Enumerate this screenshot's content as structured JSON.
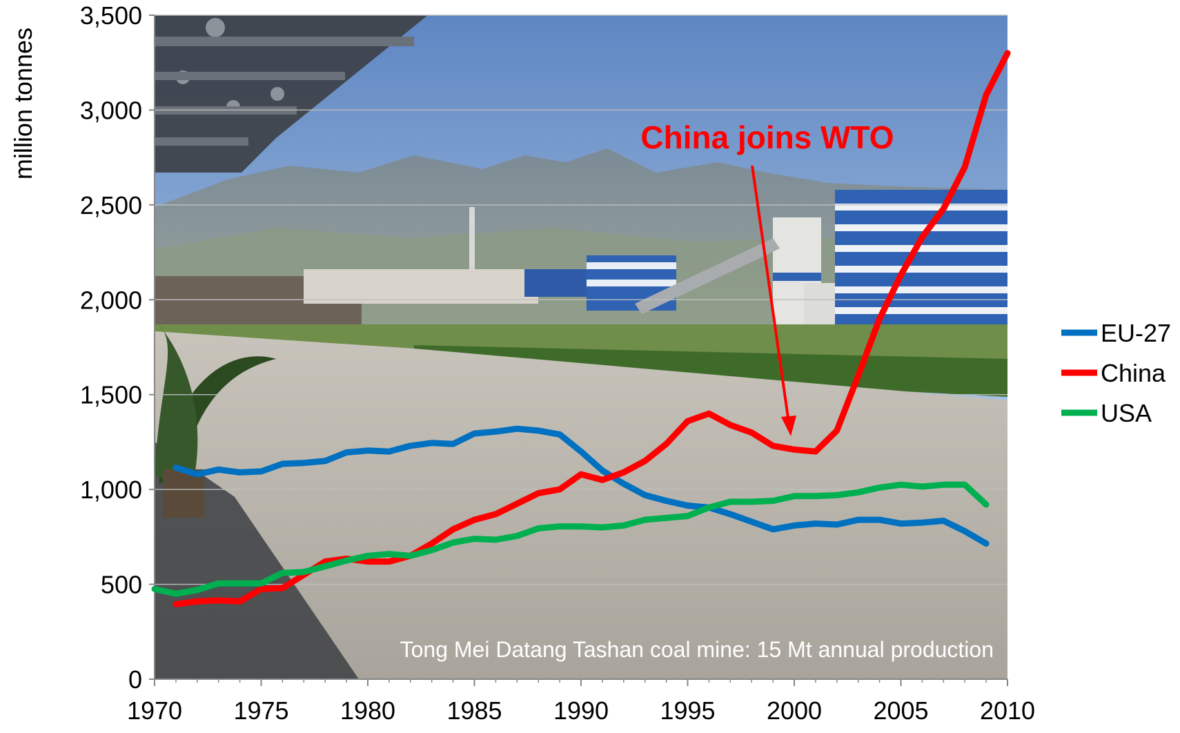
{
  "chart_data": {
    "type": "line",
    "ylabel": "million tonnes",
    "xlim": [
      1970,
      2010
    ],
    "ylim": [
      0,
      3500
    ],
    "x_ticks": [
      "1970",
      "1975",
      "1980",
      "1985",
      "1990",
      "1995",
      "2000",
      "2005",
      "2010"
    ],
    "y_ticks": [
      "0",
      "500",
      "1,000",
      "1,500",
      "2,000",
      "2,500",
      "3,000",
      "3,500"
    ],
    "grid": true,
    "legend_position": "right",
    "series": [
      {
        "name": "EU-27",
        "color": "#0070c0",
        "x": [
          1971,
          1972,
          1973,
          1974,
          1975,
          1976,
          1977,
          1978,
          1979,
          1980,
          1981,
          1982,
          1983,
          1984,
          1985,
          1986,
          1987,
          1988,
          1989,
          1990,
          1991,
          1992,
          1993,
          1994,
          1995,
          1996,
          1997,
          1998,
          1999,
          2000,
          2001,
          2002,
          2003,
          2004,
          2005,
          2006,
          2007,
          2008,
          2009
        ],
        "y": [
          1115,
          1080,
          1105,
          1090,
          1095,
          1135,
          1140,
          1150,
          1195,
          1205,
          1200,
          1230,
          1245,
          1240,
          1295,
          1305,
          1320,
          1310,
          1290,
          1200,
          1100,
          1030,
          970,
          940,
          915,
          905,
          870,
          830,
          790,
          810,
          820,
          815,
          840,
          840,
          820,
          825,
          835,
          780,
          715
        ]
      },
      {
        "name": "China",
        "color": "#ff0000",
        "x": [
          1971,
          1972,
          1973,
          1974,
          1975,
          1976,
          1977,
          1978,
          1979,
          1980,
          1981,
          1982,
          1983,
          1984,
          1985,
          1986,
          1987,
          1988,
          1989,
          1990,
          1991,
          1992,
          1993,
          1994,
          1995,
          1996,
          1997,
          1998,
          1999,
          2000,
          2001,
          2002,
          2003,
          2004,
          2005,
          2006,
          2007,
          2008,
          2009,
          2010
        ],
        "y": [
          395,
          410,
          415,
          410,
          475,
          480,
          550,
          620,
          635,
          620,
          620,
          650,
          715,
          790,
          840,
          870,
          925,
          980,
          1000,
          1080,
          1050,
          1090,
          1150,
          1240,
          1360,
          1400,
          1340,
          1300,
          1230,
          1210,
          1200,
          1310,
          1600,
          1900,
          2130,
          2330,
          2480,
          2700,
          3080,
          3300
        ]
      },
      {
        "name": "USA",
        "color": "#00b050",
        "x": [
          1970,
          1971,
          1972,
          1973,
          1974,
          1975,
          1976,
          1977,
          1978,
          1979,
          1980,
          1981,
          1982,
          1983,
          1984,
          1985,
          1986,
          1987,
          1988,
          1989,
          1990,
          1991,
          1992,
          1993,
          1994,
          1995,
          1996,
          1997,
          1998,
          1999,
          2000,
          2001,
          2002,
          2003,
          2004,
          2005,
          2006,
          2007,
          2008,
          2009
        ],
        "y": [
          475,
          450,
          470,
          505,
          505,
          505,
          560,
          565,
          595,
          625,
          650,
          660,
          650,
          680,
          720,
          740,
          735,
          755,
          795,
          805,
          805,
          800,
          810,
          840,
          850,
          860,
          905,
          935,
          935,
          940,
          965,
          965,
          970,
          985,
          1010,
          1025,
          1015,
          1025,
          1025,
          920
        ]
      }
    ],
    "annotations": [
      {
        "text": "China joins WTO",
        "x": 2001,
        "y": 1200,
        "color": "#ff0000"
      },
      {
        "text": "Tong Mei Datang Tashan coal mine: 15 Mt annual production",
        "color": "#ffffff"
      }
    ]
  }
}
